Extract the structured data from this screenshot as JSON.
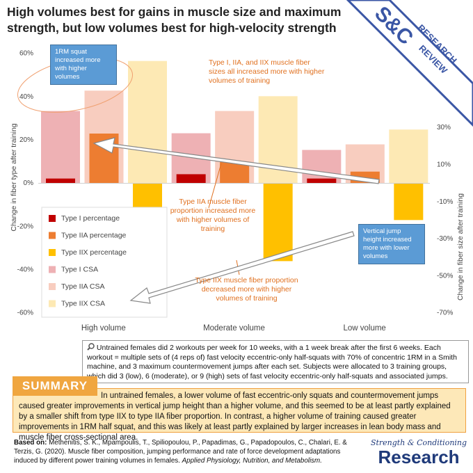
{
  "chart_data": {
    "type": "bar",
    "title": "High volumes best for gains in muscle size and maximum strength, but low volumes best for high-velocity strength",
    "categories": [
      "High volume",
      "Moderate volume",
      "Low volume"
    ],
    "ylabel": "Change in fiber type after training",
    "y2label": "Change in fiber size after training",
    "ylim": [
      -60,
      60
    ],
    "yticks": [
      {
        "value": -60,
        "label": "-60%"
      },
      {
        "value": -40,
        "label": "-40%"
      },
      {
        "value": -20,
        "label": "-20%"
      },
      {
        "value": 0,
        "label": "0%"
      },
      {
        "value": 20,
        "label": "20%"
      },
      {
        "value": 40,
        "label": "40%"
      },
      {
        "value": 60,
        "label": "60%"
      }
    ],
    "y2lim": [
      -70,
      70
    ],
    "y2ticks": [
      {
        "value": -70,
        "label": "-70%"
      },
      {
        "value": -50,
        "label": "-50%"
      },
      {
        "value": -30,
        "label": "-30%"
      },
      {
        "value": -10,
        "label": "-10%"
      },
      {
        "value": 10,
        "label": "10%"
      },
      {
        "value": 30,
        "label": "30%"
      }
    ],
    "legend": "lower-left",
    "series": [
      {
        "name": "Type I percentage",
        "color": "#c00000",
        "values": [
          2.2,
          4.2,
          2.2
        ]
      },
      {
        "name": "Type IIA percentage",
        "color": "#ed7d31",
        "values": [
          23,
          10,
          5.4
        ]
      },
      {
        "name": "Type IIX percentage",
        "color": "#ffc000",
        "values": [
          -52,
          -36,
          -17
        ]
      },
      {
        "name": "Type I CSA",
        "color": "#eeb1b4",
        "axis": "y2",
        "values": [
          39,
          27,
          18
        ]
      },
      {
        "name": "Type IIA CSA",
        "color": "#f8cdbf",
        "axis": "y2",
        "values": [
          50,
          39,
          21
        ]
      },
      {
        "name": "Type IIX CSA",
        "color": "#fde9b4",
        "axis": "y2",
        "values": [
          66,
          47,
          29
        ]
      }
    ],
    "annotations": [
      "1RM squat increased more with higher volumes",
      "Type I, IIA, and IIX muscle fiber sizes all increased more with higher volumes of training",
      "Type IIA muscle fiber proportion increased more with higher volumes of training",
      "Vertical jump height increased more with lower volumes",
      "Type IIX muscle fiber proportion decreased more with higher volumes of training"
    ]
  },
  "study": "Untrained females did 2 workouts per week for 10 weeks, with a 1 week break after the first 6 weeks. Each workout = multiple sets of (4 reps of) fast velocity eccentric-only half-squats with 70% of concentric 1RM in a Smith machine, and 3 maximum countermovement jumps after each set. Subjects were allocated to 3 training groups, which did 3 (low), 6 (moderate), or 9 (high) sets of fast velocity eccentric-only half-squats and associated jumps.",
  "summary": {
    "label": "SUMMARY",
    "text": "In untrained females, a lower volume of fast eccentric-only squats and countermovement jumps caused greater improvements in vertical jump height than a higher volume, and this seemed to be at least partly explained by a smaller shift from type IIX to type IIA fiber proportion. In contrast, a higher volume of training caused greater improvements in 1RM half squat, and this was likely at least partly explained by larger increases in lean body mass and muscle fiber cross-sectional area."
  },
  "reference": {
    "label": "Based on:",
    "citation": "Methenitis, S. K., Mpampoulis, T., Spiliopoulou, P., Papadimas, G., Papadopoulos, C., Chalari, E. & Terzis, G. (2020). Muscle fiber composition, jumping performance and rate of force development adaptations induced by different power training volumes in females.",
    "journal": "Applied Physiology, Nutrition, and Metabolism."
  },
  "logo": {
    "mark": "S&C",
    "line1": "RESEARCH",
    "line2": "REVIEW",
    "footer_script": "Strength & Conditioning",
    "footer_word": "Research"
  }
}
